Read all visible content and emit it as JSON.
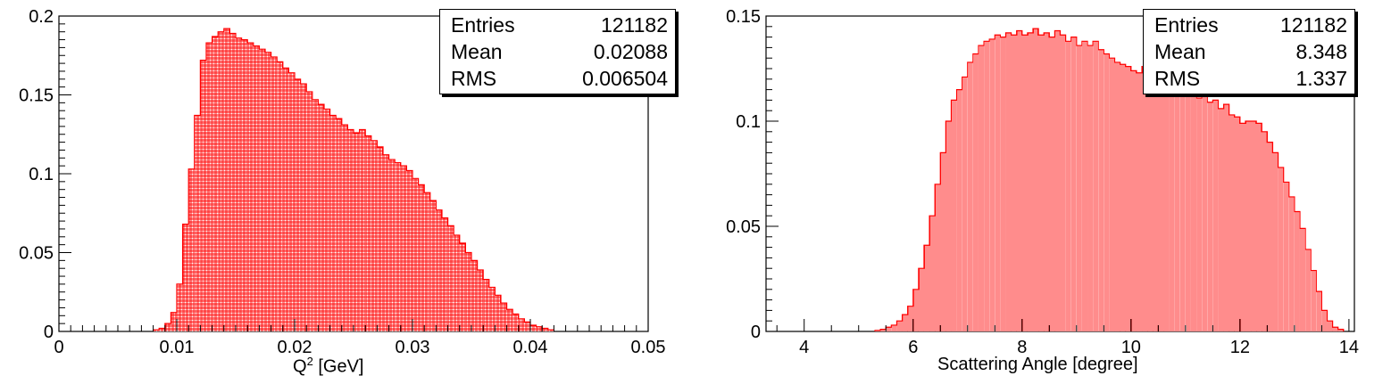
{
  "chart_data": [
    {
      "type": "bar",
      "histogram_style": "hatched",
      "xlabel": "Q",
      "xlabel_superscript": "2",
      "xlabel_unit": " [GeV]",
      "xlim": [
        0,
        0.05
      ],
      "ylim": [
        0,
        0.2
      ],
      "x_ticks": [
        "0",
        "0.01",
        "0.02",
        "0.03",
        "0.04",
        "0.05"
      ],
      "y_ticks": [
        "0",
        "0.05",
        "0.1",
        "0.15",
        "0.2"
      ],
      "bin_width": 0.0005,
      "x_start": 0.008,
      "values": [
        0.001,
        0.002,
        0.005,
        0.012,
        0.03,
        0.068,
        0.103,
        0.137,
        0.172,
        0.183,
        0.187,
        0.19,
        0.192,
        0.189,
        0.186,
        0.185,
        0.183,
        0.181,
        0.179,
        0.177,
        0.174,
        0.171,
        0.167,
        0.164,
        0.16,
        0.157,
        0.152,
        0.147,
        0.144,
        0.141,
        0.137,
        0.135,
        0.131,
        0.128,
        0.126,
        0.128,
        0.124,
        0.121,
        0.117,
        0.112,
        0.109,
        0.107,
        0.105,
        0.102,
        0.097,
        0.093,
        0.088,
        0.083,
        0.077,
        0.072,
        0.067,
        0.061,
        0.056,
        0.05,
        0.045,
        0.039,
        0.033,
        0.028,
        0.023,
        0.018,
        0.014,
        0.011,
        0.008,
        0.006,
        0.004,
        0.003,
        0.002,
        0.001
      ],
      "stats": [
        {
          "label": "Entries",
          "value": "121182"
        },
        {
          "label": "Mean",
          "value": "0.02088"
        },
        {
          "label": "RMS",
          "value": "0.006504"
        }
      ],
      "color": "#ff0000"
    },
    {
      "type": "bar",
      "histogram_style": "hatched",
      "xlabel": "Scattering Angle [degree]",
      "xlim": [
        3.3,
        14.1
      ],
      "ylim": [
        0,
        0.15
      ],
      "x_ticks": [
        "4",
        "6",
        "8",
        "10",
        "12",
        "14"
      ],
      "y_ticks": [
        "0",
        "0.05",
        "0.1",
        "0.15"
      ],
      "bin_width": 0.1,
      "x_start": 5.3,
      "values": [
        0.0005,
        0.001,
        0.002,
        0.003,
        0.005,
        0.008,
        0.012,
        0.02,
        0.03,
        0.041,
        0.055,
        0.07,
        0.085,
        0.1,
        0.11,
        0.115,
        0.121,
        0.128,
        0.132,
        0.136,
        0.138,
        0.139,
        0.141,
        0.14,
        0.142,
        0.141,
        0.143,
        0.141,
        0.142,
        0.144,
        0.141,
        0.142,
        0.14,
        0.143,
        0.141,
        0.138,
        0.14,
        0.136,
        0.138,
        0.136,
        0.138,
        0.134,
        0.132,
        0.13,
        0.128,
        0.127,
        0.126,
        0.124,
        0.123,
        0.126,
        0.12,
        0.12,
        0.118,
        0.117,
        0.115,
        0.118,
        0.116,
        0.113,
        0.112,
        0.111,
        0.113,
        0.109,
        0.11,
        0.106,
        0.108,
        0.103,
        0.102,
        0.099,
        0.1,
        0.1,
        0.099,
        0.095,
        0.09,
        0.085,
        0.078,
        0.071,
        0.064,
        0.057,
        0.049,
        0.039,
        0.029,
        0.019,
        0.01,
        0.005,
        0.002,
        0.001
      ],
      "stats": [
        {
          "label": "Entries",
          "value": "121182"
        },
        {
          "label": "Mean",
          "value": "8.348"
        },
        {
          "label": "RMS",
          "value": "1.337"
        }
      ],
      "color": "#ff0000"
    }
  ]
}
